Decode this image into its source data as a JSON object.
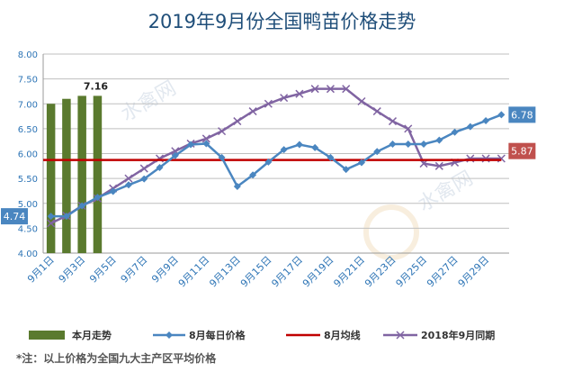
{
  "chart_data": {
    "type": "line",
    "title": "2019年9月份全国鸭苗价格走势",
    "footnote": "*注：以上价格为全国九大主产区平均价格",
    "watermark": "水禽网",
    "ylim": [
      4.0,
      8.0
    ],
    "yticks": [
      "4.00",
      "4.50",
      "5.00",
      "5.50",
      "6.00",
      "6.50",
      "7.00",
      "7.50",
      "8.00"
    ],
    "x_count": 30,
    "xtick_labels": [
      "9月1日",
      "9月3日",
      "9月5日",
      "9月7日",
      "9月9日",
      "9月11日",
      "9月13日",
      "9月15日",
      "9月17日",
      "9月19日",
      "9月21日",
      "9月23日",
      "9月25日",
      "9月27日",
      "9月29日"
    ],
    "grid": true,
    "legend_position": "bottom",
    "series": [
      {
        "name": "本月走势",
        "kind": "bar",
        "color": "#5a7a2e",
        "x": [
          1,
          2,
          3,
          4
        ],
        "values": [
          7.0,
          7.1,
          7.16,
          7.16
        ],
        "label": "7.16"
      },
      {
        "name": "8月每日价格",
        "kind": "line",
        "color": "#4a86c0",
        "marker": "diamond",
        "x": [
          1,
          2,
          3,
          4,
          5,
          6,
          7,
          8,
          9,
          10,
          11,
          12,
          13,
          14,
          15,
          16,
          17,
          18,
          19,
          20,
          21,
          22,
          23,
          24,
          25,
          26,
          27,
          28,
          29,
          30
        ],
        "values": [
          4.74,
          4.74,
          4.95,
          5.12,
          5.24,
          5.37,
          5.49,
          5.72,
          5.96,
          6.18,
          6.2,
          5.92,
          5.34,
          5.57,
          5.83,
          6.08,
          6.18,
          6.12,
          5.92,
          5.68,
          5.82,
          6.04,
          6.19,
          6.19,
          6.19,
          6.27,
          6.43,
          6.54,
          6.66,
          6.78
        ],
        "start_label": "4.74",
        "end_label": "6.78"
      },
      {
        "name": "8月均线",
        "kind": "hline",
        "color": "#c00000",
        "value": 5.87,
        "label": "5.87"
      },
      {
        "name": "2018年9月同期",
        "kind": "line",
        "color": "#8064a2",
        "marker": "x",
        "x": [
          1,
          2,
          3,
          4,
          5,
          6,
          7,
          8,
          9,
          10,
          11,
          12,
          13,
          14,
          15,
          16,
          17,
          18,
          19,
          20,
          21,
          22,
          23,
          24,
          25,
          26,
          27,
          28,
          29,
          30
        ],
        "values": [
          4.6,
          4.75,
          4.95,
          5.1,
          5.3,
          5.5,
          5.7,
          5.9,
          6.05,
          6.2,
          6.3,
          6.45,
          6.65,
          6.85,
          7.0,
          7.12,
          7.2,
          7.3,
          7.3,
          7.3,
          7.05,
          6.85,
          6.65,
          6.5,
          5.8,
          5.75,
          5.82,
          5.9,
          5.9,
          5.9
        ]
      }
    ]
  }
}
